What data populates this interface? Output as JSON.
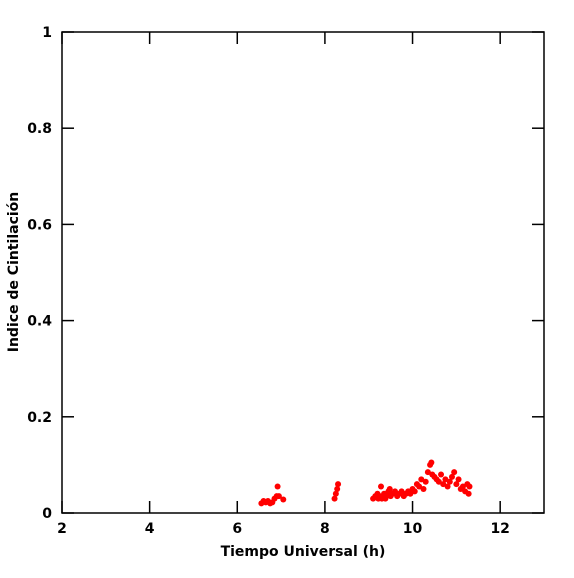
{
  "chart_data": {
    "type": "scatter",
    "x_label": "Tiempo Universal (h)",
    "y_label": "Indice de Cintilación",
    "color": "#ff0000",
    "xlim": [
      2,
      13
    ],
    "ylim": [
      0,
      1
    ],
    "xticks": [
      2,
      4,
      6,
      8,
      10,
      12
    ],
    "yticks": [
      0,
      0.2,
      0.4,
      0.6,
      0.8,
      1
    ],
    "x": [
      6.55,
      6.6,
      6.65,
      6.7,
      6.75,
      6.8,
      6.85,
      6.9,
      6.92,
      6.95,
      7.05,
      8.22,
      8.25,
      8.28,
      8.3,
      9.1,
      9.15,
      9.2,
      9.22,
      9.25,
      9.28,
      9.3,
      9.35,
      9.38,
      9.4,
      9.45,
      9.48,
      9.5,
      9.55,
      9.6,
      9.65,
      9.7,
      9.75,
      9.8,
      9.85,
      9.9,
      9.95,
      10.0,
      10.05,
      10.1,
      10.15,
      10.2,
      10.25,
      10.3,
      10.35,
      10.4,
      10.43,
      10.45,
      10.5,
      10.55,
      10.6,
      10.65,
      10.7,
      10.75,
      10.8,
      10.85,
      10.9,
      10.95,
      11.0,
      11.05,
      11.1,
      11.15,
      11.2,
      11.25,
      11.3,
      11.28
    ],
    "values": [
      0.02,
      0.025,
      0.022,
      0.025,
      0.02,
      0.022,
      0.03,
      0.035,
      0.055,
      0.035,
      0.028,
      0.03,
      0.04,
      0.05,
      0.06,
      0.03,
      0.035,
      0.04,
      0.03,
      0.035,
      0.055,
      0.03,
      0.04,
      0.03,
      0.035,
      0.045,
      0.05,
      0.035,
      0.04,
      0.045,
      0.035,
      0.04,
      0.045,
      0.035,
      0.04,
      0.045,
      0.04,
      0.05,
      0.045,
      0.06,
      0.055,
      0.07,
      0.05,
      0.065,
      0.085,
      0.1,
      0.105,
      0.08,
      0.075,
      0.07,
      0.065,
      0.08,
      0.06,
      0.07,
      0.055,
      0.065,
      0.075,
      0.085,
      0.06,
      0.07,
      0.05,
      0.055,
      0.045,
      0.06,
      0.055,
      0.04
    ]
  }
}
